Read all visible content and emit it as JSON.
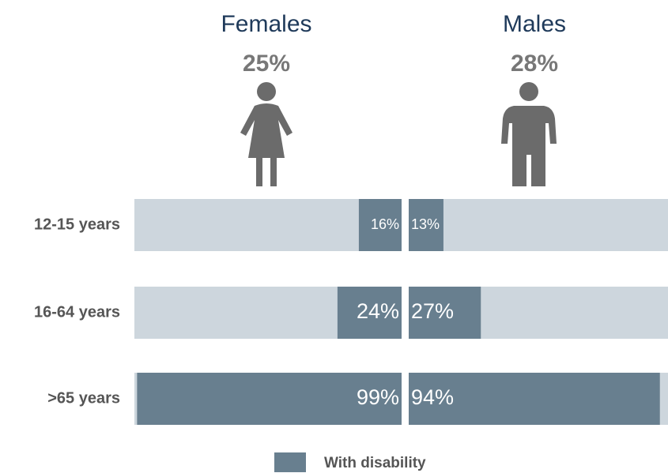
{
  "chart_data": {
    "type": "butterfly-bar",
    "categories": [
      "12-15 years",
      "16-64 years",
      ">65 years"
    ],
    "series": [
      {
        "name": "Females",
        "total": 25,
        "total_label": "25%",
        "color": "#687f8f",
        "values": [
          16,
          24,
          99
        ],
        "value_labels": [
          "16%",
          "24%",
          "99%"
        ]
      },
      {
        "name": "Males",
        "total": 28,
        "total_label": "28%",
        "color": "#687f8f",
        "values": [
          13,
          27,
          94
        ],
        "value_labels": [
          "13%",
          "27%",
          "94%"
        ]
      }
    ],
    "xlim": [
      0,
      100
    ],
    "background_color": "#cdd6dd",
    "legend": "With disability"
  }
}
